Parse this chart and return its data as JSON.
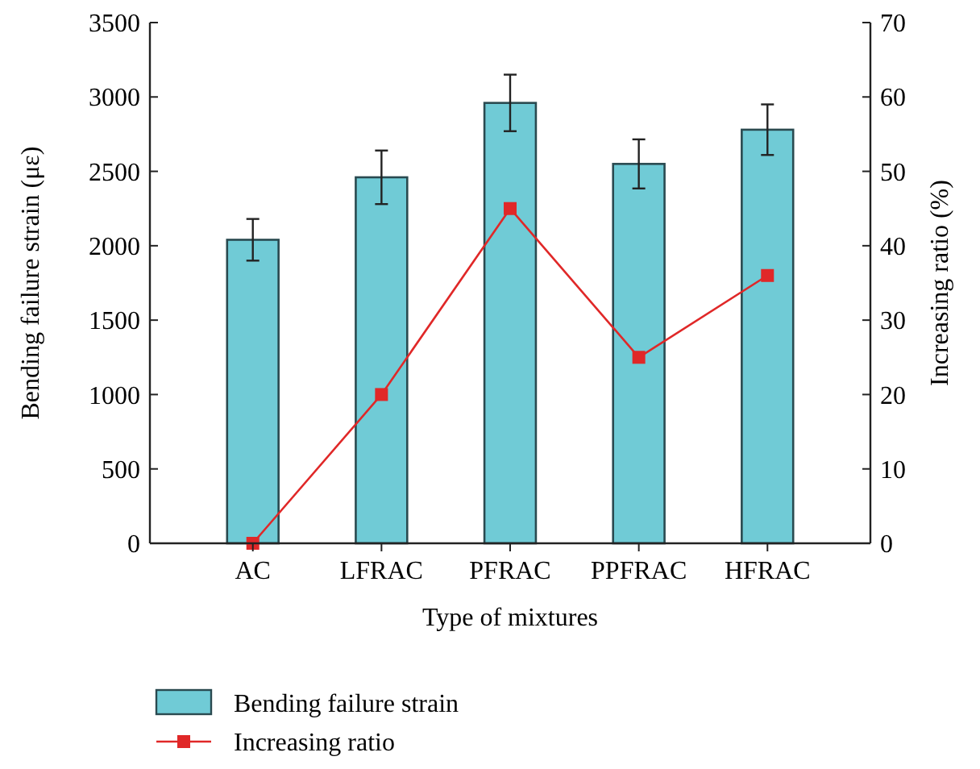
{
  "chart_data": {
    "type": "bar",
    "xlabel": "Type of mixtures",
    "ylabel": "Bending failure strain (με)",
    "y2label": "Increasing ratio (%)",
    "categories": [
      "AC",
      "LFRAC",
      "PFRAC",
      "PPFRAC",
      "HFRAC"
    ],
    "series": [
      {
        "name": "Bending failure strain",
        "color": "#70cbd6",
        "values": [
          2040,
          2460,
          2960,
          2550,
          2780
        ],
        "errors": [
          140,
          180,
          190,
          165,
          170
        ]
      },
      {
        "name": "Increasing ratio",
        "type": "line",
        "axis": "y2",
        "color": "#e02828",
        "values": [
          0,
          20,
          45,
          25,
          36
        ],
        "marker": "square",
        "line_style": "solid"
      }
    ],
    "ylim": [
      0,
      3500
    ],
    "yticks": [
      0,
      500,
      1000,
      1500,
      2000,
      2500,
      3000,
      3500
    ],
    "y2lim": [
      0,
      70
    ],
    "y2ticks": [
      0,
      10,
      20,
      30,
      40,
      50,
      60,
      70
    ],
    "grid": false,
    "legend": "bottom left"
  }
}
